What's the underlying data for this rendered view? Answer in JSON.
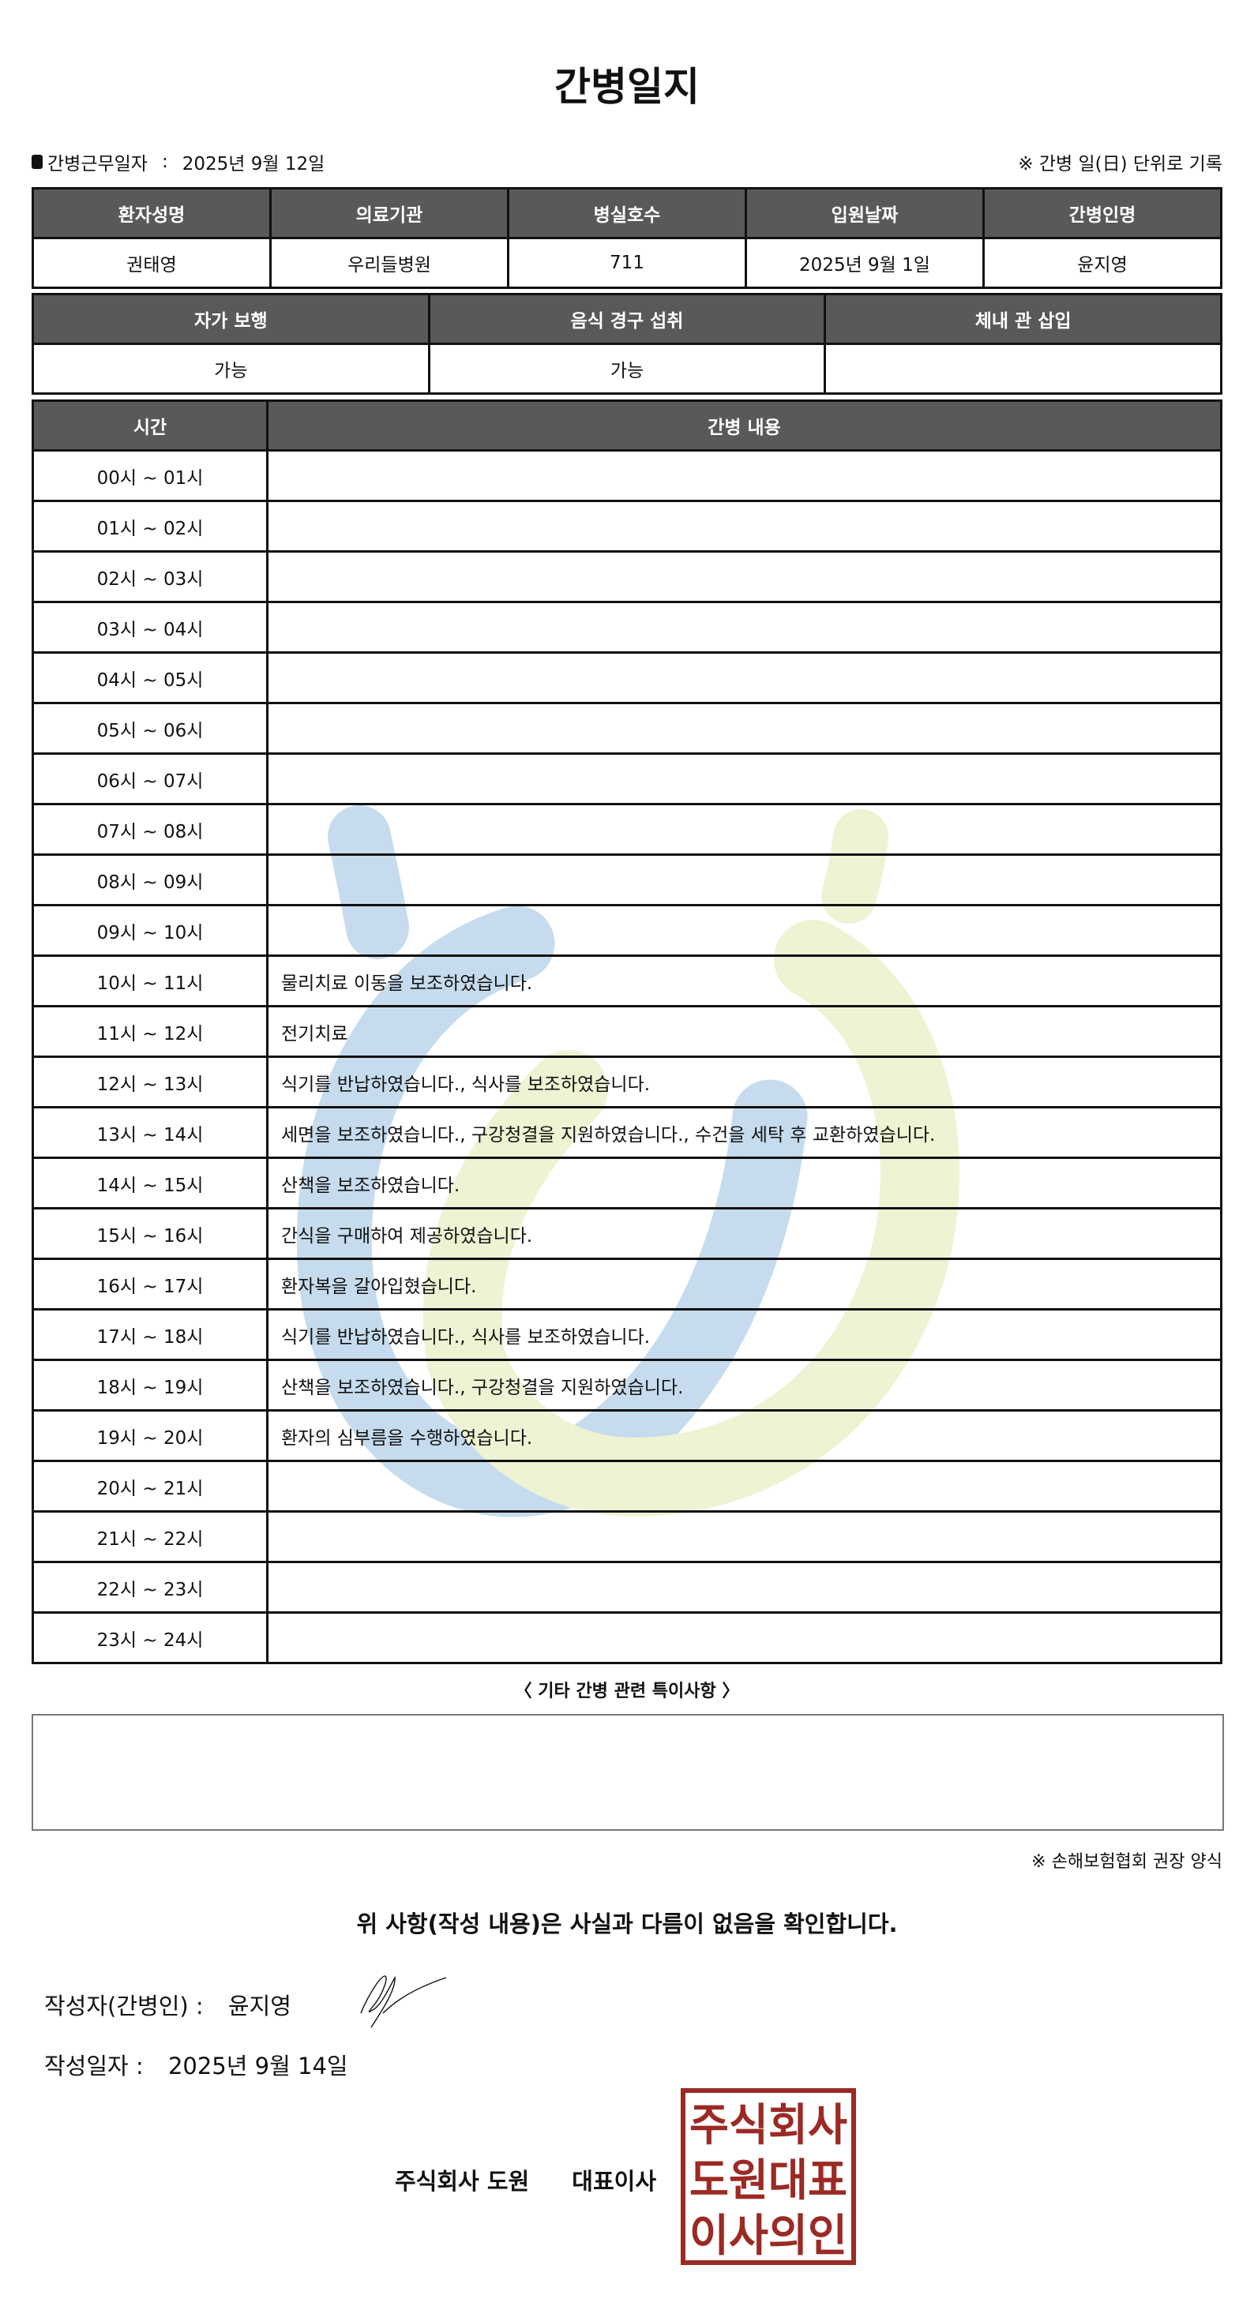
{
  "title": "간병일지",
  "info": {
    "label": "간병근무일자",
    "separator": ":",
    "date": "2025년 9월 12일",
    "note": "※ 간병 일(日) 단위로 기록"
  },
  "patient_table": {
    "headers": [
      "환자성명",
      "의료기관",
      "병실호수",
      "입원날짜",
      "간병인명"
    ],
    "values": [
      "권태영",
      "우리들병원",
      "711",
      "2025년 9월 1일",
      "윤지영"
    ]
  },
  "status_table": {
    "headers": [
      "자가 보행",
      "음식 경구 섭취",
      "체내 관 삽입"
    ],
    "values": [
      "가능",
      "가능",
      ""
    ]
  },
  "log_table": {
    "headers": [
      "시간",
      "간병 내용"
    ],
    "rows": [
      {
        "time": "00시 ~ 01시",
        "content": ""
      },
      {
        "time": "01시 ~ 02시",
        "content": ""
      },
      {
        "time": "02시 ~ 03시",
        "content": ""
      },
      {
        "time": "03시 ~ 04시",
        "content": ""
      },
      {
        "time": "04시 ~ 05시",
        "content": ""
      },
      {
        "time": "05시 ~ 06시",
        "content": ""
      },
      {
        "time": "06시 ~ 07시",
        "content": ""
      },
      {
        "time": "07시 ~ 08시",
        "content": ""
      },
      {
        "time": "08시 ~ 09시",
        "content": ""
      },
      {
        "time": "09시 ~ 10시",
        "content": ""
      },
      {
        "time": "10시 ~ 11시",
        "content": "물리치료 이동을 보조하였습니다."
      },
      {
        "time": "11시 ~ 12시",
        "content": "전기치료"
      },
      {
        "time": "12시 ~ 13시",
        "content": "식기를 반납하였습니다., 식사를 보조하였습니다."
      },
      {
        "time": "13시 ~ 14시",
        "content": "세면을 보조하였습니다., 구강청결을 지원하였습니다., 수건을 세탁 후 교환하였습니다."
      },
      {
        "time": "14시 ~ 15시",
        "content": "산책을 보조하였습니다."
      },
      {
        "time": "15시 ~ 16시",
        "content": "간식을 구매하여 제공하였습니다."
      },
      {
        "time": "16시 ~ 17시",
        "content": "환자복을 갈아입혔습니다."
      },
      {
        "time": "17시 ~ 18시",
        "content": "식기를 반납하였습니다., 식사를 보조하였습니다."
      },
      {
        "time": "18시 ~ 19시",
        "content": "산책을 보조하였습니다., 구강청결을 지원하였습니다."
      },
      {
        "time": "19시 ~ 20시",
        "content": "환자의 심부름을 수행하였습니다."
      },
      {
        "time": "20시 ~ 21시",
        "content": ""
      },
      {
        "time": "21시 ~ 22시",
        "content": ""
      },
      {
        "time": "22시 ~ 23시",
        "content": ""
      },
      {
        "time": "23시 ~ 24시",
        "content": ""
      }
    ]
  },
  "notes": {
    "label": "〈 기타 간병 관련 특이사항 〉",
    "value": ""
  },
  "form_note": "※ 손해보험협회 권장 양식",
  "confirmation": "위 사항(작성 내용)은 사실과 다름이 없음을 확인합니다.",
  "writer": {
    "label": "작성자(간병인) :",
    "name": "윤지영"
  },
  "written_date": {
    "label": "작성일자 :",
    "value": "2025년 9월 14일"
  },
  "company": {
    "name": "주식회사 도원",
    "title": "대표이사"
  },
  "stamp": {
    "text": [
      "주식회사",
      "도원대표",
      "이사의인"
    ],
    "color": "#9b2a25"
  },
  "colors": {
    "header_bg": "#595959",
    "watermark_blue": "#c6dcee",
    "watermark_green": "#eef3d3"
  }
}
